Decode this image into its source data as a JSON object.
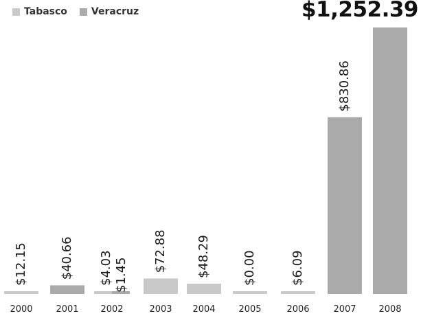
{
  "chart_data": {
    "type": "bar",
    "categories": [
      "2000",
      "2001",
      "2002",
      "2003",
      "2004",
      "2005",
      "2006",
      "2007",
      "2008"
    ],
    "series": [
      {
        "name": "Tabasco",
        "color": "#c9c9c9",
        "values": [
          12.15,
          null,
          4.03,
          72.88,
          48.29,
          0.0,
          6.09,
          null,
          null
        ]
      },
      {
        "name": "Veracruz",
        "color": "#aaaaaa",
        "values": [
          null,
          40.66,
          1.45,
          null,
          null,
          null,
          null,
          830.86,
          1252.39
        ]
      }
    ],
    "data_labels": [
      {
        "category": "2000",
        "series": "Tabasco",
        "text": "$12.15"
      },
      {
        "category": "2001",
        "series": "Veracruz",
        "text": "$40.66"
      },
      {
        "category": "2002",
        "series": "Tabasco",
        "text": "$4.03"
      },
      {
        "category": "2002",
        "series": "Veracruz",
        "text": "$1.45"
      },
      {
        "category": "2003",
        "series": "Tabasco",
        "text": "$72.88"
      },
      {
        "category": "2004",
        "series": "Tabasco",
        "text": "$48.29"
      },
      {
        "category": "2005",
        "series": "Tabasco",
        "text": "$0.00"
      },
      {
        "category": "2006",
        "series": "Tabasco",
        "text": "$6.09"
      },
      {
        "category": "2007",
        "series": "Veracruz",
        "text": "$830.86"
      }
    ],
    "annotation": "$1,252.39",
    "legend_position": "top-left",
    "ylim": [
      0,
      1252.39
    ],
    "grid": false
  }
}
